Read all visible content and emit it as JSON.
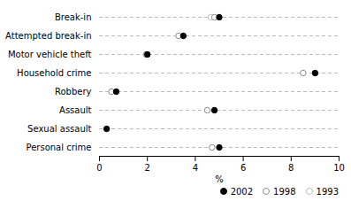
{
  "chart_data": {
    "type": "dot",
    "categories": [
      "Break-in",
      "Attempted break-in",
      "Motor vehicle theft",
      "Household crime",
      "Robbery",
      "Assault",
      "Sexual assault",
      "Personal crime"
    ],
    "series": [
      {
        "name": "2002",
        "color": "#000000",
        "marker": "filled_circle",
        "values": [
          5.0,
          3.5,
          2.0,
          9.0,
          0.7,
          4.8,
          0.3,
          5.0
        ]
      },
      {
        "name": "1998",
        "color": "#888888",
        "marker": "open_circle",
        "values": [
          4.8,
          3.3,
          1.95,
          8.5,
          0.5,
          4.5,
          null,
          4.7
        ]
      },
      {
        "name": "1993",
        "color": "#bbbbbb",
        "marker": "open_circle",
        "values": [
          4.65,
          null,
          null,
          null,
          null,
          null,
          null,
          null
        ]
      }
    ],
    "xlabel": "%",
    "xlim": [
      0,
      10
    ],
    "xticks": [
      0,
      2,
      4,
      6,
      8,
      10
    ],
    "grid": true,
    "legend": "lower right"
  }
}
